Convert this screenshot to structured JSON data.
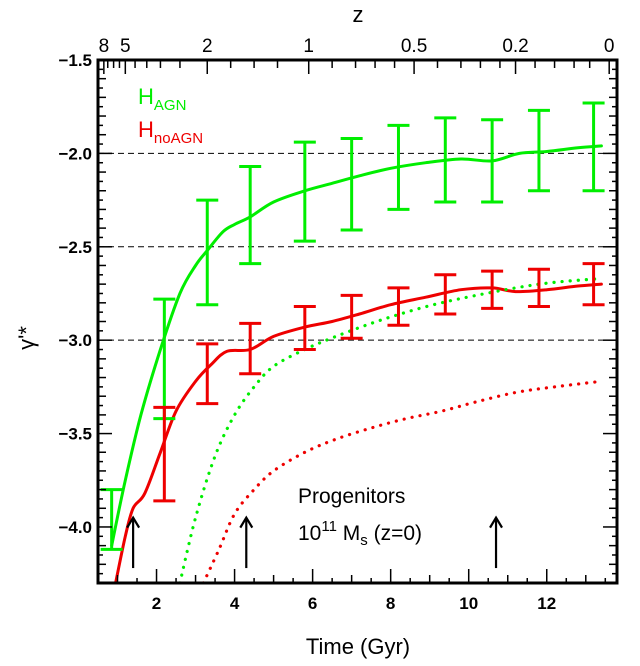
{
  "chart_data": {
    "type": "line",
    "xlabel": "Time (Gyr)",
    "ylabel": "γ'*",
    "top_axis_label": "z",
    "xlim": [
      0.5,
      13.8
    ],
    "ylim": [
      -4.3,
      -1.5
    ],
    "x_ticks": [
      2,
      4,
      6,
      8,
      10,
      12
    ],
    "x_tick_labels": [
      "2",
      "4",
      "6",
      "8",
      "10",
      "12"
    ],
    "y_ticks": [
      -1.5,
      -2.0,
      -2.5,
      -3.0,
      -3.5,
      -4.0
    ],
    "y_tick_labels": [
      "−1.5",
      "−2.0",
      "−2.5",
      "−3.0",
      "−3.5",
      "−4.0"
    ],
    "top_ticks": [
      {
        "t": 0.65,
        "label": "8"
      },
      {
        "t": 1.2,
        "label": "5"
      },
      {
        "t": 3.3,
        "label": "2"
      },
      {
        "t": 5.9,
        "label": "1"
      },
      {
        "t": 8.6,
        "label": "0.5"
      },
      {
        "t": 11.2,
        "label": "0.2"
      },
      {
        "t": 13.6,
        "label": "0"
      }
    ],
    "hlines": [
      -2.0,
      -2.5,
      -3.0
    ],
    "series": [
      {
        "name": "HAGN",
        "color": "#00ee00",
        "style": "solid",
        "x": [
          0.85,
          1.2,
          1.6,
          2.1,
          2.6,
          3.0,
          3.3,
          3.7,
          4.0,
          4.4,
          5.0,
          5.8,
          6.5,
          7.2,
          8.0,
          8.9,
          9.8,
          10.6,
          11.3,
          12.0,
          12.8,
          13.4
        ],
        "y": [
          -4.1,
          -3.75,
          -3.4,
          -3.05,
          -2.75,
          -2.6,
          -2.52,
          -2.42,
          -2.38,
          -2.34,
          -2.26,
          -2.2,
          -2.16,
          -2.12,
          -2.08,
          -2.05,
          -2.03,
          -2.04,
          -2.0,
          -1.99,
          -1.97,
          -1.96
        ]
      },
      {
        "name": "HnoAGN",
        "color": "#ee0000",
        "style": "solid",
        "x": [
          0.95,
          1.2,
          1.4,
          1.7,
          2.1,
          2.5,
          3.0,
          3.4,
          3.8,
          4.4,
          5.0,
          5.8,
          6.5,
          7.2,
          8.0,
          8.9,
          9.8,
          10.6,
          11.2,
          12.0,
          12.8,
          13.4
        ],
        "y": [
          -4.3,
          -4.05,
          -3.9,
          -3.82,
          -3.6,
          -3.38,
          -3.22,
          -3.13,
          -3.06,
          -3.05,
          -2.98,
          -2.93,
          -2.9,
          -2.86,
          -2.81,
          -2.77,
          -2.73,
          -2.72,
          -2.74,
          -2.73,
          -2.71,
          -2.7
        ]
      },
      {
        "name": "Progenitors HAGN",
        "color": "#00ee00",
        "style": "dotted",
        "x": [
          2.6,
          3.0,
          3.5,
          4.0,
          4.5,
          5.0,
          5.8,
          6.6,
          7.5,
          8.4,
          9.3,
          10.2,
          11.2,
          12.2,
          13.4
        ],
        "y": [
          -4.3,
          -3.95,
          -3.62,
          -3.4,
          -3.25,
          -3.14,
          -3.05,
          -2.98,
          -2.91,
          -2.85,
          -2.8,
          -2.76,
          -2.72,
          -2.69,
          -2.67
        ]
      },
      {
        "name": "Progenitors HnoAGN",
        "color": "#ee0000",
        "style": "dotted",
        "x": [
          3.2,
          3.6,
          4.0,
          4.5,
          5.0,
          5.8,
          6.6,
          7.5,
          8.4,
          9.3,
          10.2,
          11.2,
          12.2,
          13.4
        ],
        "y": [
          -4.3,
          -4.12,
          -3.93,
          -3.8,
          -3.7,
          -3.6,
          -3.53,
          -3.47,
          -3.42,
          -3.38,
          -3.33,
          -3.28,
          -3.25,
          -3.22
        ]
      }
    ],
    "error_bars": [
      {
        "series": "HAGN",
        "color": "#00ee00",
        "points": [
          {
            "x": 0.85,
            "lo": -4.12,
            "hi": -3.8
          },
          {
            "x": 2.2,
            "lo": -3.42,
            "hi": -2.78
          },
          {
            "x": 3.3,
            "lo": -2.81,
            "hi": -2.25
          },
          {
            "x": 4.4,
            "lo": -2.59,
            "hi": -2.07
          },
          {
            "x": 5.8,
            "lo": -2.47,
            "hi": -1.94
          },
          {
            "x": 7.0,
            "lo": -2.41,
            "hi": -1.92
          },
          {
            "x": 8.2,
            "lo": -2.3,
            "hi": -1.85
          },
          {
            "x": 9.4,
            "lo": -2.26,
            "hi": -1.81
          },
          {
            "x": 10.6,
            "lo": -2.26,
            "hi": -1.82
          },
          {
            "x": 11.8,
            "lo": -2.2,
            "hi": -1.77
          },
          {
            "x": 13.2,
            "lo": -2.2,
            "hi": -1.73
          }
        ]
      },
      {
        "series": "HnoAGN",
        "color": "#ee0000",
        "points": [
          {
            "x": 2.2,
            "lo": -3.86,
            "hi": -3.36
          },
          {
            "x": 3.3,
            "lo": -3.34,
            "hi": -3.02
          },
          {
            "x": 4.4,
            "lo": -3.18,
            "hi": -2.91
          },
          {
            "x": 5.8,
            "lo": -3.05,
            "hi": -2.82
          },
          {
            "x": 7.0,
            "lo": -2.99,
            "hi": -2.76
          },
          {
            "x": 8.2,
            "lo": -2.92,
            "hi": -2.72
          },
          {
            "x": 9.4,
            "lo": -2.86,
            "hi": -2.65
          },
          {
            "x": 10.6,
            "lo": -2.83,
            "hi": -2.63
          },
          {
            "x": 11.8,
            "lo": -2.82,
            "hi": -2.62
          },
          {
            "x": 13.2,
            "lo": -2.81,
            "hi": -2.59
          }
        ]
      }
    ],
    "arrows": [
      {
        "x": 1.4,
        "y_from": -4.22,
        "y_to": -3.95
      },
      {
        "x": 4.3,
        "y_from": -4.22,
        "y_to": -3.95
      },
      {
        "x": 10.7,
        "y_from": -4.22,
        "y_to": -3.95
      }
    ],
    "legend": [
      {
        "main": "H",
        "sub": "AGN",
        "color": "#00ee00"
      },
      {
        "main": "H",
        "sub": "noAGN",
        "color": "#ee0000"
      }
    ],
    "annotation": {
      "line1": "Progenitors",
      "line2_main": "10",
      "line2_sup": "11",
      "line2_rest": " M",
      "line2_sub": "s",
      "line2_tail": " (z=0)"
    },
    "grid": false,
    "legend_position": "top-left"
  }
}
